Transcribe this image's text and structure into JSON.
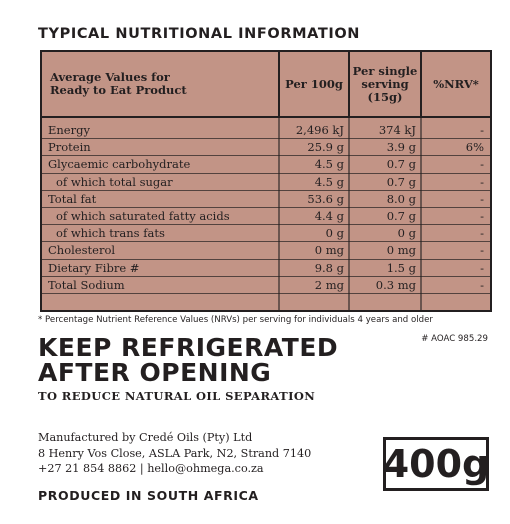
{
  "title": "TYPICAL NUTRITIONAL INFORMATION",
  "table": {
    "headers": {
      "avg_line1": "Average Values for",
      "avg_line2": "Ready to Eat Product",
      "per100": "Per 100g",
      "serv_line1": "Per single",
      "serv_line2": "serving",
      "serv_line3": "(15g)",
      "nrv": "%NRV*"
    },
    "rows": [
      {
        "label": "Energy",
        "per100": "2,496 kJ",
        "serving": "374 kJ",
        "nrv": "-",
        "indent": false
      },
      {
        "label": "Protein",
        "per100": "25.9 g",
        "serving": "3.9 g",
        "nrv": "6%",
        "indent": false
      },
      {
        "label": "Glycaemic carbohydrate",
        "per100": "4.5 g",
        "serving": "0.7 g",
        "nrv": "-",
        "indent": false
      },
      {
        "label": "of which total sugar",
        "per100": "4.5 g",
        "serving": "0.7 g",
        "nrv": "-",
        "indent": true
      },
      {
        "label": "Total fat",
        "per100": "53.6 g",
        "serving": "8.0 g",
        "nrv": "-",
        "indent": false
      },
      {
        "label": "of which saturated fatty acids",
        "per100": "4.4 g",
        "serving": "0.7 g",
        "nrv": "-",
        "indent": true
      },
      {
        "label": "of which trans fats",
        "per100": "0 g",
        "serving": "0 g",
        "nrv": "-",
        "indent": true
      },
      {
        "label": "Cholesterol",
        "per100": "0 mg",
        "serving": "0 mg",
        "nrv": "-",
        "indent": false
      },
      {
        "label": "Dietary Fibre #",
        "per100": "9.8 g",
        "serving": "1.5 g",
        "nrv": "-",
        "indent": false
      },
      {
        "label": "Total Sodium",
        "per100": "2 mg",
        "serving": "0.3 mg",
        "nrv": "-",
        "indent": false
      }
    ]
  },
  "footnote": "* Percentage Nutrient Reference Values (NRVs) per serving for individuals 4 years and older",
  "aoac": "# AOAC 985.29",
  "keep_line1": "KEEP REFRIGERATED",
  "keep_line2": "AFTER OPENING",
  "reduce": "TO REDUCE NATURAL OIL SEPARATION",
  "manufacturer": {
    "line1": "Manufactured by Credé Oils (Pty) Ltd",
    "line2": "8 Henry Vos Close, ASLA Park, N2, Strand 7140",
    "line3": "+27 21 854 8862 | hello@ohmega.co.za"
  },
  "weight": "400g",
  "produced": "PRODUCED IN SOUTH AFRICA",
  "colors": {
    "panel": "#c29486",
    "ink": "#231f20"
  }
}
